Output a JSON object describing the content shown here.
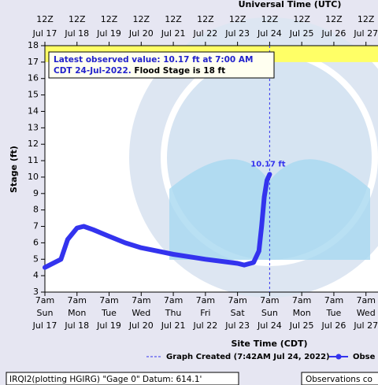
{
  "chart_data": {
    "type": "line",
    "top_axis_title": "Universal Time (UTC)",
    "x_axis_title": "Site Time (CDT)",
    "y_axis_title": "Stage (ft)",
    "annotation_line1": "Latest observed value: 10.17 ft at 7:00 AM",
    "annotation_line2a": "CDT 24-Jul-2022.",
    "annotation_line2b": "Flood Stage is 18 ft",
    "point_label": "10.17 ft",
    "legend_created": "Graph Created (7:42AM Jul 24, 2022)",
    "footer_left": "IRQI2(plotting HGIRG) \"Gage 0\" Datum: 614.1'",
    "footer_right": "Observations co",
    "flood_zone": {
      "ylim": [
        17,
        18
      ],
      "color": "#ffff66"
    },
    "xlim": [
      "2022-07-17 07:00",
      "2022-07-27 16:00"
    ],
    "ylim": [
      3,
      18
    ],
    "yticks": [
      3,
      4,
      5,
      6,
      7,
      8,
      9,
      10,
      11,
      12,
      13,
      14,
      15,
      16,
      17,
      18
    ],
    "xticks": [
      {
        "value": "2022-07-17 07:00",
        "label": "7am",
        "day": "Sun",
        "date": "Jul 17"
      },
      {
        "value": "2022-07-18 07:00",
        "label": "7am",
        "day": "Mon",
        "date": "Jul 18"
      },
      {
        "value": "2022-07-19 07:00",
        "label": "7am",
        "day": "Tue",
        "date": "Jul 19"
      },
      {
        "value": "2022-07-20 07:00",
        "label": "7am",
        "day": "Wed",
        "date": "Jul 20"
      },
      {
        "value": "2022-07-21 07:00",
        "label": "7am",
        "day": "Thu",
        "date": "Jul 21"
      },
      {
        "value": "2022-07-22 07:00",
        "label": "7am",
        "day": "Fri",
        "date": "Jul 22"
      },
      {
        "value": "2022-07-23 07:00",
        "label": "7am",
        "day": "Sat",
        "date": "Jul 23"
      },
      {
        "value": "2022-07-24 07:00",
        "label": "7am",
        "day": "Sun",
        "date": "Jul 24"
      },
      {
        "value": "2022-07-25 07:00",
        "label": "7am",
        "day": "Mon",
        "date": "Jul 25"
      },
      {
        "value": "2022-07-26 07:00",
        "label": "7am",
        "day": "Tue",
        "date": "Jul 26"
      },
      {
        "value": "2022-07-27 07:00",
        "label": "7am",
        "day": "Wed",
        "date": "Jul 27"
      }
    ],
    "x2ticks": [
      {
        "value": "2022-07-17 07:00",
        "label": "12Z",
        "date": "Jul 17"
      },
      {
        "value": "2022-07-18 07:00",
        "label": "12Z",
        "date": "Jul 18"
      },
      {
        "value": "2022-07-19 07:00",
        "label": "12Z",
        "date": "Jul 19"
      },
      {
        "value": "2022-07-20 07:00",
        "label": "12Z",
        "date": "Jul 20"
      },
      {
        "value": "2022-07-21 07:00",
        "label": "12Z",
        "date": "Jul 21"
      },
      {
        "value": "2022-07-22 07:00",
        "label": "12Z",
        "date": "Jul 22"
      },
      {
        "value": "2022-07-23 07:00",
        "label": "12Z",
        "date": "Jul 23"
      },
      {
        "value": "2022-07-24 07:00",
        "label": "12Z",
        "date": "Jul 24"
      },
      {
        "value": "2022-07-25 07:00",
        "label": "12Z",
        "date": "Jul 25"
      },
      {
        "value": "2022-07-26 07:00",
        "label": "12Z",
        "date": "Jul 26"
      },
      {
        "value": "2022-07-27 07:00",
        "label": "12Z",
        "date": "Jul 27"
      }
    ],
    "x": [
      "2022-07-17 07:00",
      "2022-07-17 19:00",
      "2022-07-18 00:00",
      "2022-07-18 07:00",
      "2022-07-18 12:00",
      "2022-07-18 19:00",
      "2022-07-19 07:00",
      "2022-07-19 19:00",
      "2022-07-20 07:00",
      "2022-07-20 19:00",
      "2022-07-21 07:00",
      "2022-07-22 07:00",
      "2022-07-23 07:00",
      "2022-07-23 12:00",
      "2022-07-23 19:00",
      "2022-07-23 23:00",
      "2022-07-24 01:00",
      "2022-07-24 03:00",
      "2022-07-24 05:00",
      "2022-07-24 07:00"
    ],
    "series": [
      {
        "name": "Obse",
        "color": "#3333ee",
        "values": [
          4.5,
          5.0,
          6.2,
          6.9,
          7.0,
          6.8,
          6.4,
          6.0,
          5.7,
          5.5,
          5.3,
          5.0,
          4.75,
          4.65,
          4.8,
          5.5,
          7.0,
          8.8,
          9.8,
          10.17
        ]
      }
    ]
  }
}
